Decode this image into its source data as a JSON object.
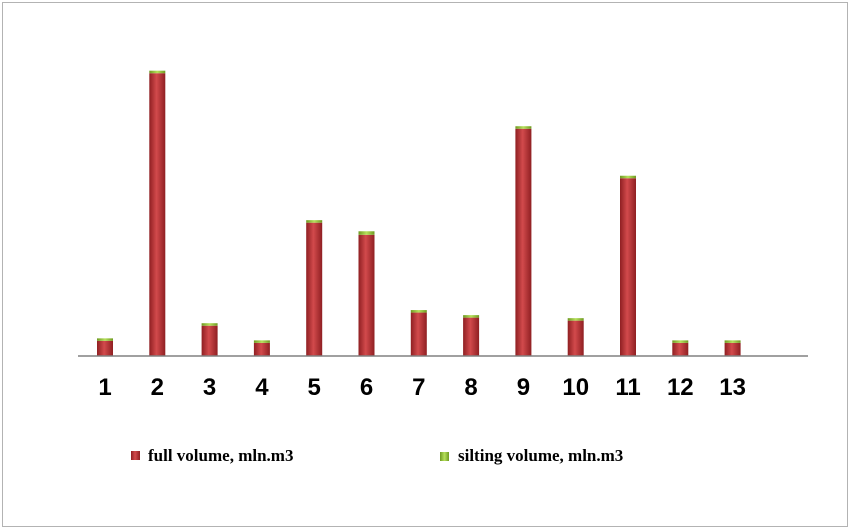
{
  "chart_data": {
    "type": "bar",
    "stacked": true,
    "categories": [
      "1",
      "2",
      "3",
      "4",
      "5",
      "6",
      "7",
      "8",
      "9",
      "10",
      "11",
      "12",
      "13"
    ],
    "series": [
      {
        "name": "full volume, mln.m3",
        "values": [
          15,
          280,
          30,
          13,
          132,
          120,
          43,
          38,
          225,
          35,
          176,
          13,
          13
        ]
      },
      {
        "name": "silting volume, mln.m3",
        "values": [
          0.8,
          2.5,
          1,
          0.8,
          2.5,
          3.5,
          1.2,
          1.2,
          2.5,
          1,
          2,
          0.8,
          0.8
        ]
      }
    ],
    "ylim": [
      0,
      300
    ],
    "grid": false,
    "legend": "bottom",
    "colors": {
      "full": "#c0393b",
      "silting": "#9acd3c"
    }
  }
}
